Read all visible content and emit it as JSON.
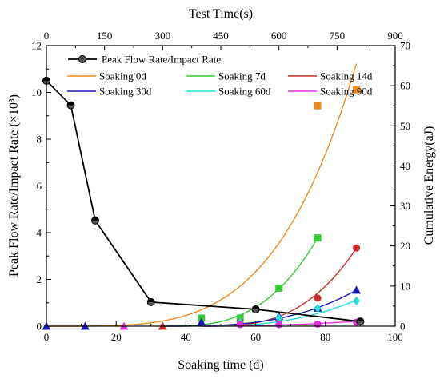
{
  "chart_data": {
    "type": "line",
    "title": "",
    "xlabel": "Soaking time (d)",
    "ylabel_left": "Peak Flow Rate/Impact Rate (×10³)",
    "xlabel_top": "Test Time(s)",
    "ylabel_right": "Cumulative Energy(aJ)",
    "xlim": [
      0,
      100
    ],
    "ylim_left": [
      0,
      12
    ],
    "xlim_top": [
      0,
      900
    ],
    "ylim_right": [
      0,
      70
    ],
    "x_ticks": [
      "0",
      "20",
      "40",
      "60",
      "80",
      "100"
    ],
    "y_left_ticks": [
      "0",
      "2",
      "4",
      "6",
      "8",
      "10",
      "12"
    ],
    "x_top_ticks": [
      "0",
      "150",
      "300",
      "450",
      "600",
      "750",
      "900"
    ],
    "y_right_ticks": [
      "0",
      "10",
      "20",
      "30",
      "40",
      "50",
      "60",
      "70"
    ],
    "grid": false,
    "legend_position": "top-left",
    "peak_flow_series": {
      "name": "Peak Flow Rate/Impact Rate",
      "color": "#000000",
      "x": [
        0,
        7,
        14,
        30,
        60,
        90
      ],
      "y": [
        10.5,
        9.45,
        4.52,
        1.03,
        0.72,
        0.2
      ]
    },
    "energy_series": [
      {
        "name": "Soaking 0d",
        "color": "#f08a1c",
        "marker": "square",
        "curve": {
          "t_start": 0,
          "t_end": 800,
          "y_end": 65.5,
          "power": 4
        },
        "points": [
          {
            "t": 700,
            "y": 55
          },
          {
            "t": 800,
            "y": 59
          }
        ]
      },
      {
        "name": "Soaking 7d",
        "color": "#33cc33",
        "marker": "square",
        "curve": {
          "t_start": 300,
          "t_end": 700,
          "y_end": 22,
          "power": 3
        },
        "points": [
          {
            "t": 400,
            "y": 2
          },
          {
            "t": 500,
            "y": 2
          },
          {
            "t": 600,
            "y": 9.5
          },
          {
            "t": 700,
            "y": 22
          }
        ]
      },
      {
        "name": "Soaking 14d",
        "color": "#cc2a2a",
        "marker": "circle",
        "curve": {
          "t_start": 400,
          "t_end": 800,
          "y_end": 19.5,
          "power": 3
        },
        "points": [
          {
            "t": 500,
            "y": 1
          },
          {
            "t": 600,
            "y": 1.5
          },
          {
            "t": 700,
            "y": 7
          },
          {
            "t": 800,
            "y": 19.5
          }
        ]
      },
      {
        "name": "Soaking 30d",
        "color": "#1a1ab3",
        "marker": "triangle",
        "curve": {
          "t_start": 300,
          "t_end": 800,
          "y_end": 9,
          "power": 3
        },
        "points": [
          {
            "t": 400,
            "y": 1
          },
          {
            "t": 500,
            "y": 1
          },
          {
            "t": 600,
            "y": 2.5
          },
          {
            "t": 700,
            "y": 4.5
          },
          {
            "t": 800,
            "y": 9
          }
        ]
      },
      {
        "name": "Soaking 60d",
        "color": "#22dddd",
        "marker": "diamond",
        "curve": {
          "t_start": 400,
          "t_end": 800,
          "y_end": 6.5,
          "power": 2.5
        },
        "points": [
          {
            "t": 500,
            "y": 1
          },
          {
            "t": 600,
            "y": 2
          },
          {
            "t": 700,
            "y": 4.5
          },
          {
            "t": 800,
            "y": 6.3
          }
        ]
      },
      {
        "name": "Soaking 90d",
        "color": "#dd33dd",
        "marker": "circle",
        "curve": {
          "t_start": 400,
          "t_end": 800,
          "y_end": 1.2,
          "power": 2
        },
        "points": [
          {
            "t": 500,
            "y": 0.4
          },
          {
            "t": 600,
            "y": 0.4
          },
          {
            "t": 700,
            "y": 0.5
          },
          {
            "t": 800,
            "y": 1
          }
        ]
      }
    ],
    "baseline_markers": [
      {
        "t": 0,
        "y": 0,
        "color": "#1a1ab3"
      },
      {
        "t": 100,
        "y": 0,
        "color": "#1a1ab3"
      },
      {
        "t": 200,
        "y": 0,
        "color": "#dd33dd"
      },
      {
        "t": 300,
        "y": 0,
        "color": "#cc2a2a"
      }
    ]
  }
}
